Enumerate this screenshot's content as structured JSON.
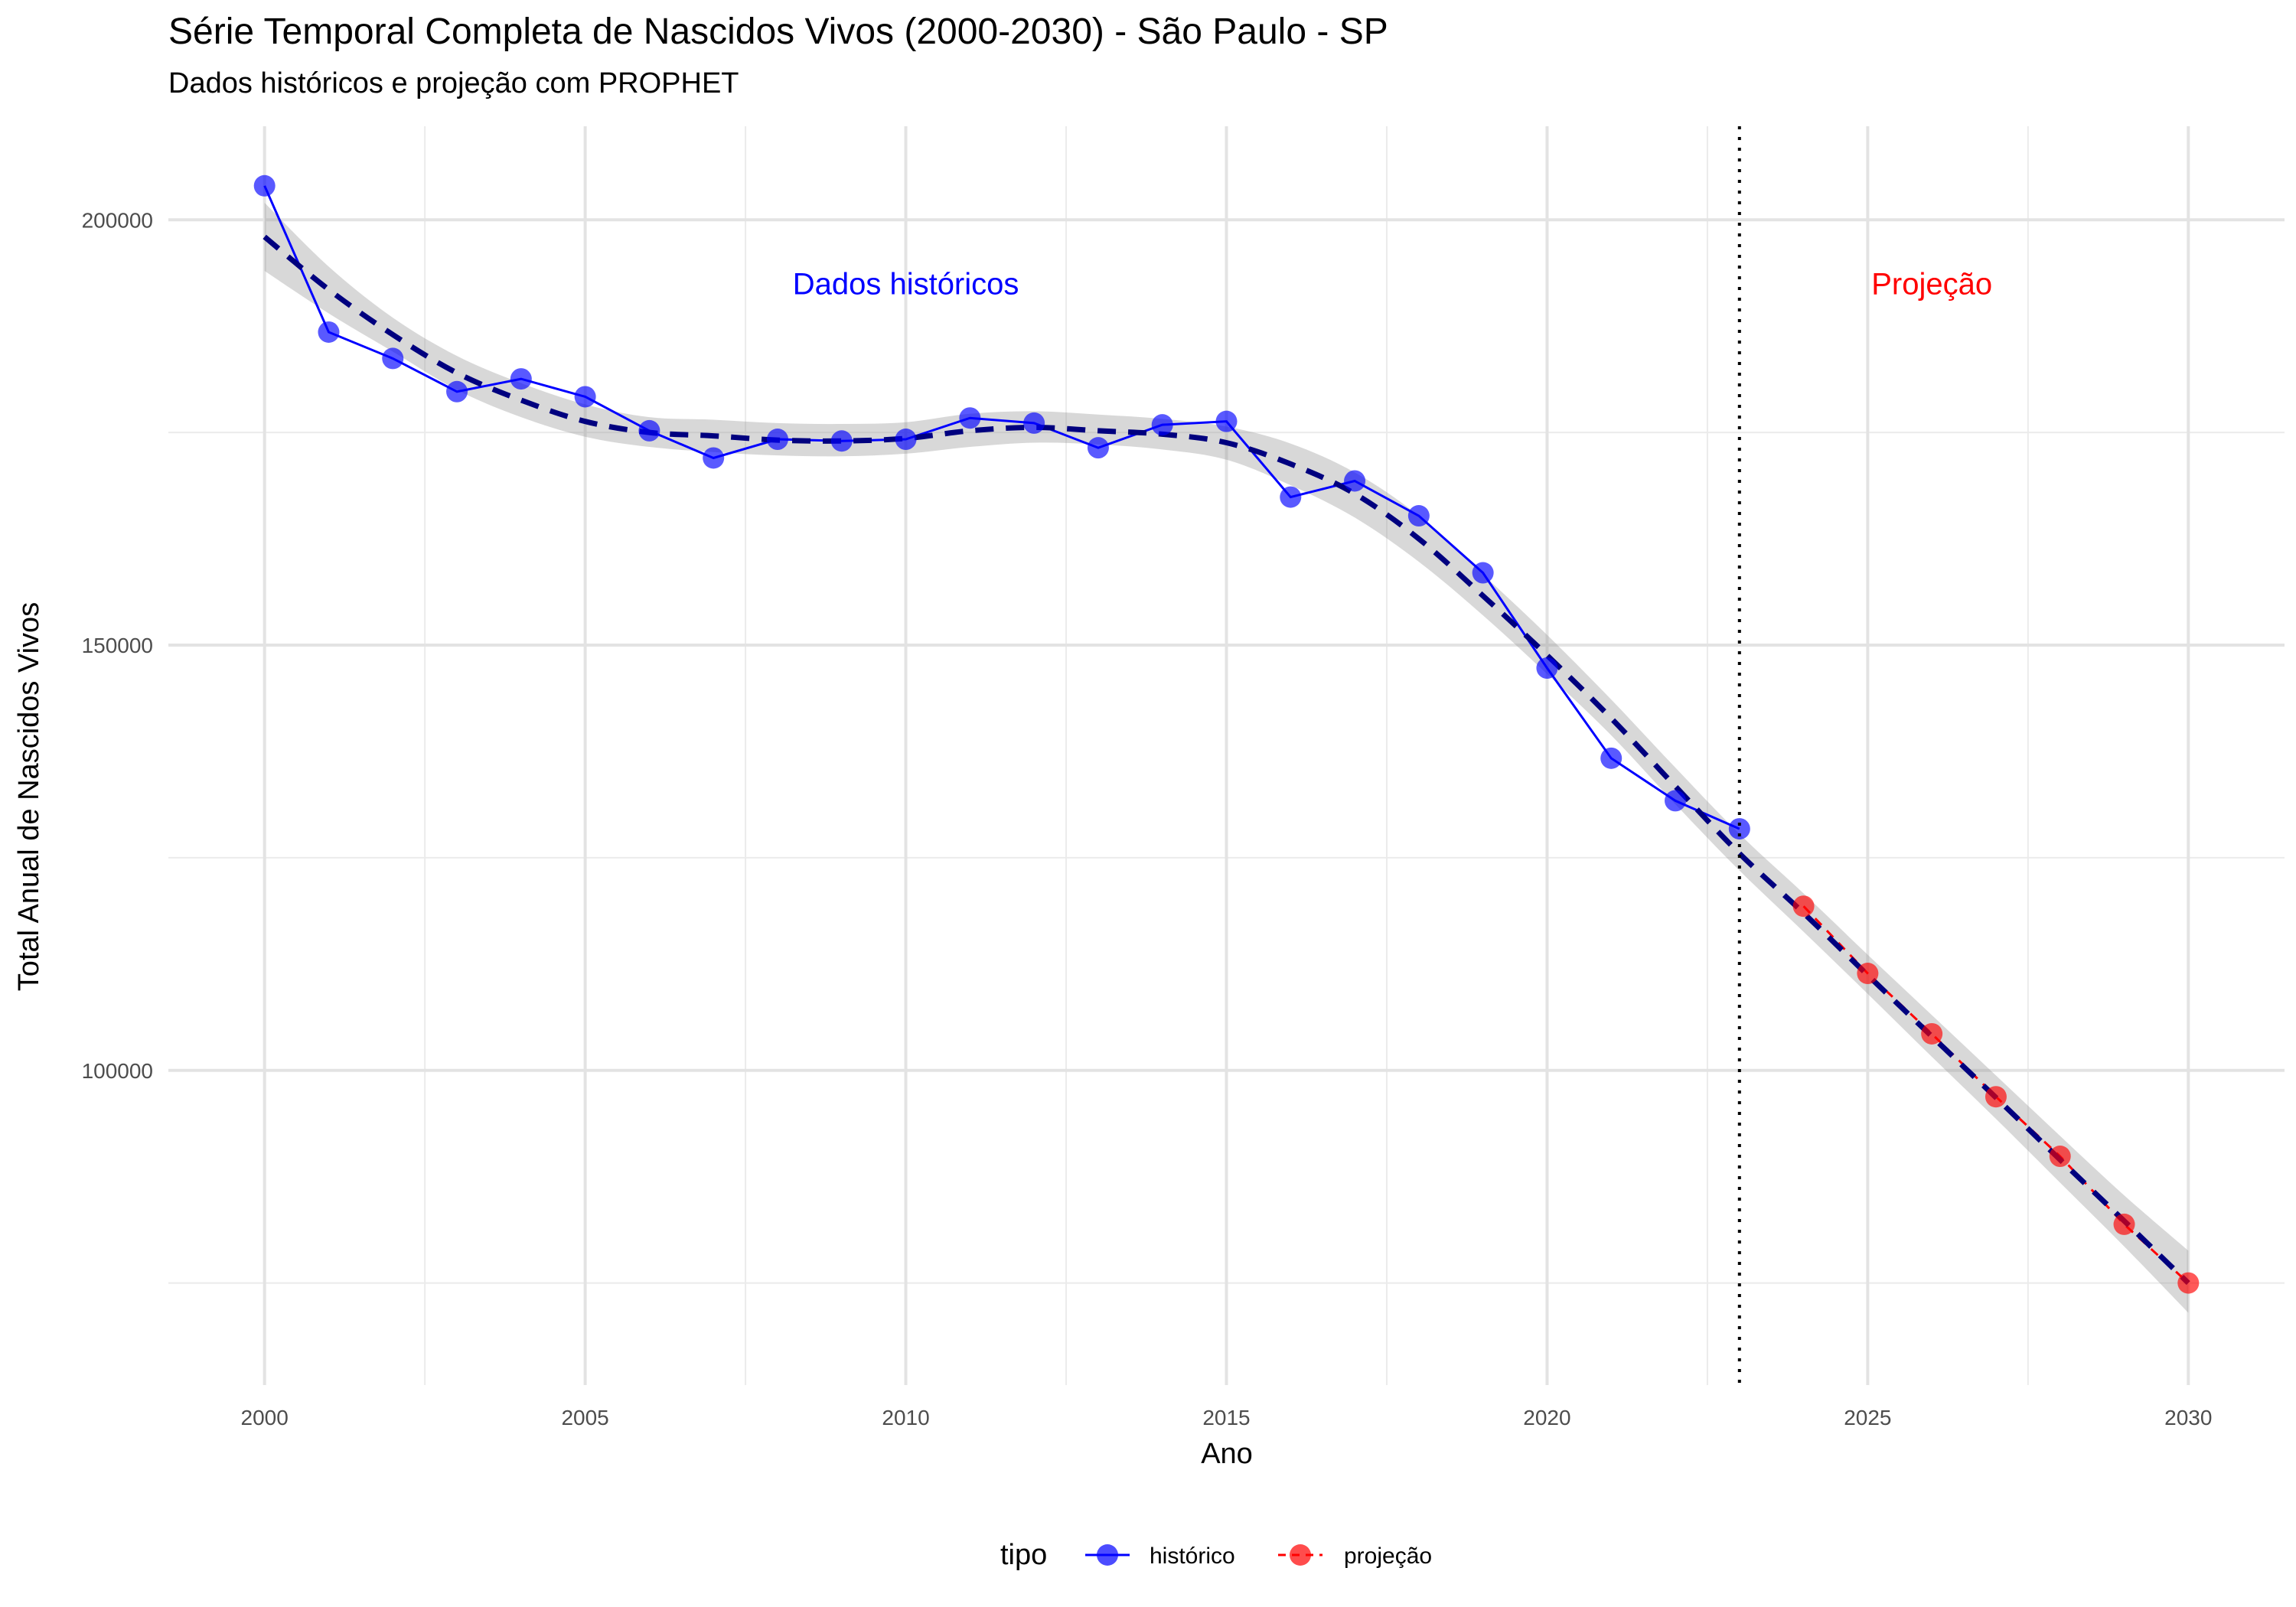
{
  "chart_data": {
    "type": "line",
    "title": "Série Temporal Completa de Nascidos Vivos (2000-2030) -  São Paulo - SP",
    "subtitle": "Dados históricos e projeção com PROPHET",
    "xlabel": "Ano",
    "ylabel": "Total Anual de Nascidos Vivos",
    "xlim": [
      1998.5,
      2031.5
    ],
    "ylim": [
      63000,
      211000
    ],
    "x_ticks": [
      2000,
      2005,
      2010,
      2015,
      2020,
      2025,
      2030
    ],
    "x_tick_labels": [
      "2000",
      "2005",
      "2010",
      "2015",
      "2020",
      "2025",
      "2030"
    ],
    "y_ticks": [
      100000,
      150000,
      200000
    ],
    "y_tick_labels": [
      "100000",
      "150000",
      "200000"
    ],
    "y_minor_ticks": [
      75000,
      125000,
      175000
    ],
    "grid": true,
    "vertical_line": {
      "x": 2023,
      "style": "dotted",
      "color": "#000000"
    },
    "annotations": [
      {
        "text": "Dados históricos",
        "x": 2010,
        "y": 192500,
        "color": "#0000ff"
      },
      {
        "text": "Projeção",
        "x": 2026,
        "y": 192500,
        "color": "#ff0000"
      }
    ],
    "legend": {
      "title": "tipo",
      "position": "bottom",
      "entries": [
        {
          "label": "histórico",
          "color": "#0000ff"
        },
        {
          "label": "projeção",
          "color": "#ff0000"
        }
      ]
    },
    "series": [
      {
        "name": "histórico",
        "color": "#0000ff",
        "x": [
          2000,
          2001,
          2002,
          2003,
          2004,
          2005,
          2006,
          2007,
          2008,
          2009,
          2010,
          2011,
          2012,
          2013,
          2014,
          2015,
          2016,
          2017,
          2018,
          2019,
          2020,
          2021,
          2022,
          2023
        ],
        "y": [
          204000,
          186800,
          183700,
          179800,
          181300,
          179200,
          175200,
          172000,
          174200,
          174000,
          174200,
          176700,
          176100,
          173200,
          175900,
          176300,
          167400,
          169300,
          165200,
          158500,
          147300,
          136700,
          131700,
          128400
        ]
      },
      {
        "name": "projeção",
        "color": "#ff0000",
        "x": [
          2024,
          2025,
          2026,
          2027,
          2028,
          2029,
          2030
        ],
        "y": [
          119300,
          111400,
          104300,
          96900,
          89900,
          81900,
          75000
        ]
      }
    ],
    "trend": {
      "color": "#00007f",
      "style": "dashed",
      "x": [
        2000,
        2001,
        2002,
        2003,
        2004,
        2005,
        2006,
        2007,
        2008,
        2009,
        2010,
        2011,
        2012,
        2013,
        2014,
        2015,
        2016,
        2017,
        2018,
        2019,
        2020,
        2021,
        2022,
        2023,
        2024,
        2025,
        2026,
        2027,
        2028,
        2029,
        2030
      ],
      "y": [
        198000,
        191800,
        186500,
        182000,
        178800,
        176300,
        175000,
        174600,
        174100,
        174000,
        174300,
        175200,
        175600,
        175200,
        174800,
        173800,
        171300,
        167800,
        162500,
        155800,
        148800,
        141400,
        133400,
        125500,
        118500,
        111200,
        104000,
        96800,
        89500,
        82300,
        75000
      ],
      "band_lower": [
        194000,
        189000,
        184500,
        180000,
        176800,
        174500,
        173300,
        172700,
        172300,
        172200,
        172500,
        173300,
        173800,
        173600,
        173000,
        171800,
        168800,
        165000,
        159800,
        153500,
        146600,
        139400,
        131300,
        123500,
        116300,
        109000,
        101600,
        94300,
        86800,
        79300,
        71500
      ],
      "band_upper": [
        202000,
        194500,
        188500,
        184000,
        180800,
        178300,
        176800,
        176500,
        176100,
        176000,
        176200,
        177200,
        177500,
        177100,
        176600,
        175700,
        173700,
        170300,
        165200,
        158300,
        151200,
        143600,
        135600,
        127800,
        120800,
        113600,
        106500,
        99400,
        92300,
        85300,
        78800
      ]
    }
  }
}
